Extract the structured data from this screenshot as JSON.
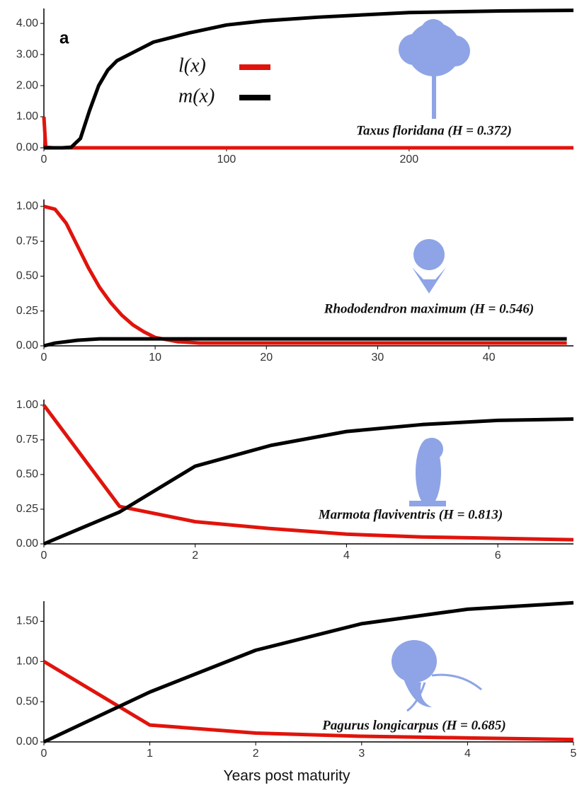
{
  "chart_data": [
    {
      "type": "line",
      "panel_label": "a",
      "annotation": "Taxus floridana (H = 0.372)",
      "legend": true,
      "x": [
        0,
        1,
        5,
        10,
        15,
        20,
        25,
        30,
        35,
        40,
        50,
        60,
        70,
        80,
        100,
        120,
        150,
        200,
        250,
        290
      ],
      "series": [
        {
          "name": "l(x)",
          "color": "#e0140c",
          "values": [
            1,
            0.02,
            0,
            0,
            0,
            0,
            0,
            0,
            0,
            0,
            0,
            0,
            0,
            0,
            0,
            0,
            0,
            0,
            0,
            0
          ]
        },
        {
          "name": "m(x)",
          "color": "#000000",
          "values": [
            0,
            0,
            0,
            0,
            0.02,
            0.3,
            1.2,
            2.0,
            2.5,
            2.8,
            3.1,
            3.4,
            3.55,
            3.7,
            3.95,
            4.08,
            4.2,
            4.35,
            4.4,
            4.42
          ]
        }
      ],
      "xlim": [
        0,
        290
      ],
      "xticks": [
        0,
        100,
        200
      ],
      "ylim": [
        0,
        4.48
      ],
      "yticks": [
        {
          "value": 0,
          "label": "0.00"
        },
        {
          "value": 1,
          "label": "1.00"
        },
        {
          "value": 2,
          "label": "2.00"
        },
        {
          "value": 3,
          "label": "3.00"
        },
        {
          "value": 4,
          "label": "4.00"
        }
      ]
    },
    {
      "type": "line",
      "annotation": "Rhododendron maximum (H = 0.546)",
      "x": [
        0,
        1,
        2,
        3,
        4,
        5,
        6,
        7,
        8,
        9,
        10,
        12,
        14,
        16,
        20,
        30,
        40,
        47
      ],
      "series": [
        {
          "color": "#e0140c",
          "values": [
            1,
            0.98,
            0.88,
            0.72,
            0.56,
            0.42,
            0.31,
            0.22,
            0.15,
            0.1,
            0.06,
            0.03,
            0.02,
            0.02,
            0.02,
            0.02,
            0.02,
            0.02
          ]
        },
        {
          "color": "#000000",
          "values": [
            0,
            0.02,
            0.03,
            0.04,
            0.045,
            0.05,
            0.05,
            0.05,
            0.05,
            0.05,
            0.05,
            0.05,
            0.05,
            0.05,
            0.05,
            0.05,
            0.05,
            0.05
          ]
        }
      ],
      "xlim": [
        0,
        47.6
      ],
      "xticks": [
        0,
        10,
        20,
        30,
        40
      ],
      "ylim": [
        0,
        1.05
      ],
      "yticks": [
        {
          "value": 0,
          "label": "0.00"
        },
        {
          "value": 0.25,
          "label": "0.25"
        },
        {
          "value": 0.5,
          "label": "0.50"
        },
        {
          "value": 0.75,
          "label": "0.75"
        },
        {
          "value": 1,
          "label": "1.00"
        }
      ]
    },
    {
      "type": "line",
      "annotation": "Marmota flaviventris (H = 0.813)",
      "x": [
        0,
        1,
        2,
        3,
        4,
        5,
        6,
        7
      ],
      "series": [
        {
          "color": "#e0140c",
          "values": [
            1,
            0.27,
            0.16,
            0.11,
            0.07,
            0.05,
            0.04,
            0.03
          ]
        },
        {
          "color": "#000000",
          "values": [
            0,
            0.23,
            0.56,
            0.71,
            0.81,
            0.86,
            0.89,
            0.9
          ]
        }
      ],
      "xlim": [
        0,
        7
      ],
      "xticks": [
        0,
        2,
        4,
        6
      ],
      "ylim": [
        0,
        1.04
      ],
      "yticks": [
        {
          "value": 0,
          "label": "0.00"
        },
        {
          "value": 0.25,
          "label": "0.25"
        },
        {
          "value": 0.5,
          "label": "0.50"
        },
        {
          "value": 0.75,
          "label": "0.75"
        },
        {
          "value": 1,
          "label": "1.00"
        }
      ]
    },
    {
      "type": "line",
      "annotation": "Pagurus longicarpus (H = 0.685)",
      "xlabel": "Years post maturity",
      "x": [
        0,
        1,
        2,
        3,
        4,
        5
      ],
      "series": [
        {
          "color": "#e0140c",
          "values": [
            1,
            0.21,
            0.11,
            0.07,
            0.05,
            0.03
          ]
        },
        {
          "color": "#000000",
          "values": [
            0,
            0.62,
            1.14,
            1.47,
            1.65,
            1.73
          ]
        }
      ],
      "xlim": [
        0,
        5
      ],
      "xticks": [
        0,
        1,
        2,
        3,
        4,
        5
      ],
      "ylim": [
        0,
        1.75
      ],
      "yticks": [
        {
          "value": 0,
          "label": "0.00"
        },
        {
          "value": 0.5,
          "label": "0.50"
        },
        {
          "value": 1,
          "label": "1.00"
        },
        {
          "value": 1.5,
          "label": "1.50"
        }
      ]
    }
  ]
}
